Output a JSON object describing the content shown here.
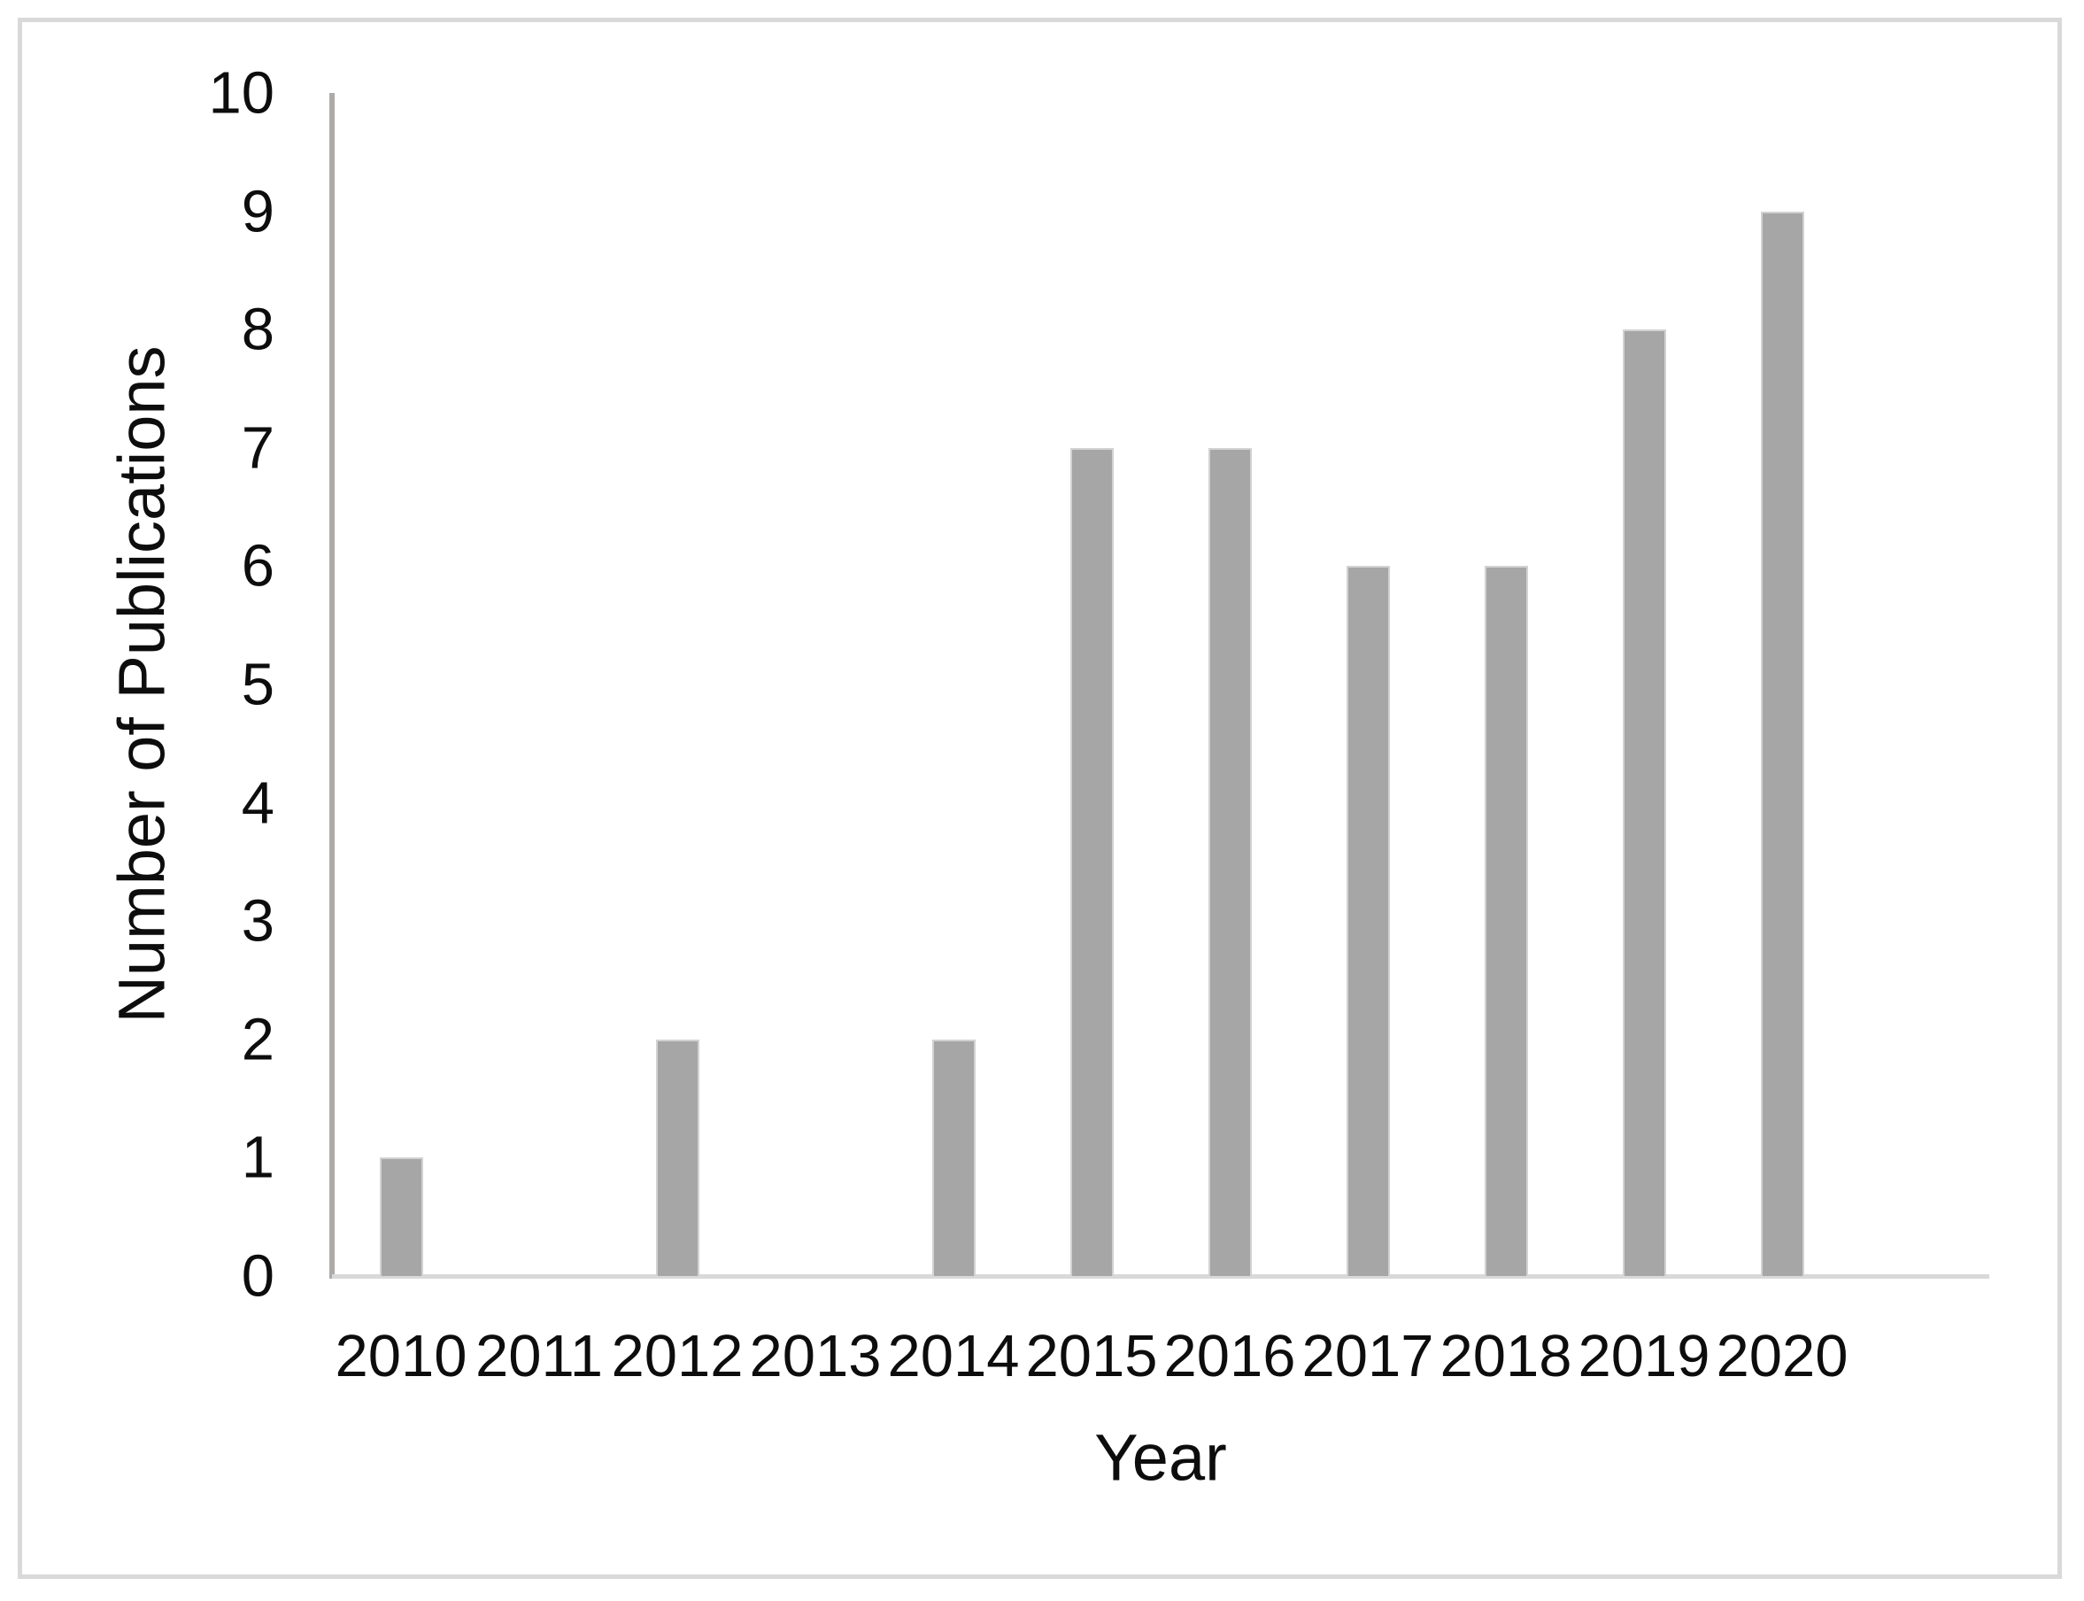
{
  "figure": {
    "background_color": "#ffffff",
    "frame_border_color": "#d9d9d9"
  },
  "chart_data": {
    "type": "bar",
    "title": "",
    "categories": [
      "2010",
      "2011",
      "2012",
      "2013",
      "2014",
      "2015",
      "2016",
      "2017",
      "2018",
      "2019",
      "2020"
    ],
    "values": [
      1,
      0,
      2,
      0,
      2,
      7,
      7,
      6,
      6,
      8,
      9
    ],
    "xlabel": "Year",
    "ylabel": "Number of Publications",
    "ylim": [
      0,
      10
    ],
    "yticks": [
      0,
      1,
      2,
      3,
      4,
      5,
      6,
      7,
      8,
      9,
      10
    ],
    "grid": false,
    "legend": false,
    "bar_color": "#a6a6a6",
    "bar_border_color": "#d2d2d2",
    "y_axis_line_color": "#aeaaaa",
    "x_axis_line_color": "#d9d9d9",
    "tick_label_color": "#0d0d0d",
    "axis_title_color": "#0d0d0d"
  }
}
